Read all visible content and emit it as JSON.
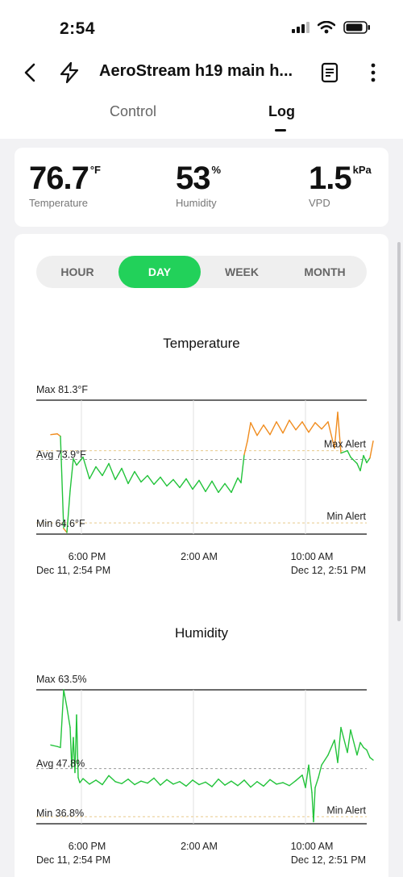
{
  "status_bar": {
    "time": "2:54",
    "icons": [
      "signal-icon",
      "wifi-icon",
      "battery-icon"
    ]
  },
  "nav": {
    "title": "AeroStream h19 main h...",
    "icons": [
      "back-chevron-icon",
      "bolt-icon",
      "document-icon",
      "more-vertical-icon"
    ]
  },
  "tabs": [
    {
      "label": "Control",
      "active": false
    },
    {
      "label": "Log",
      "active": true
    }
  ],
  "summary": [
    {
      "value": "76.7",
      "unit": "°F",
      "label": "Temperature"
    },
    {
      "value": "53",
      "unit": "%",
      "label": "Humidity"
    },
    {
      "value": "1.5",
      "unit": "kPa",
      "label": "VPD"
    }
  ],
  "range_selector": {
    "options": [
      "HOUR",
      "DAY",
      "WEEK",
      "MONTH"
    ],
    "selected": "DAY"
  },
  "colors": {
    "accent": "#22d15a",
    "green_line": "#22c33a",
    "orange_line": "#f08c1e",
    "alert_dash": "#e8c98a"
  },
  "chart_data": [
    {
      "type": "line",
      "title": "Temperature",
      "max_label": "Max 81.3°F",
      "avg_label": "Avg 73.9°F",
      "min_label": "Min 64.6°F",
      "max_alert_label": "Max Alert",
      "min_alert_label": "Min Alert",
      "ylim": [
        64.6,
        81.3
      ],
      "avg": 73.9,
      "max_alert": 75.0,
      "min_alert": 66.0,
      "x_ticks": [
        "6:00 PM",
        "2:00 AM",
        "10:00 AM"
      ],
      "x_start": "Dec 11, 2:54 PM",
      "x_end": "Dec 12, 2:51 PM",
      "series_points": [
        [
          0.0,
          77.0
        ],
        [
          0.02,
          77.1
        ],
        [
          0.03,
          76.8
        ],
        [
          0.04,
          65.3
        ],
        [
          0.05,
          64.8
        ],
        [
          0.06,
          70.0
        ],
        [
          0.07,
          74.0
        ],
        [
          0.08,
          73.2
        ],
        [
          0.1,
          74.2
        ],
        [
          0.12,
          71.5
        ],
        [
          0.14,
          73.0
        ],
        [
          0.16,
          71.9
        ],
        [
          0.18,
          73.4
        ],
        [
          0.2,
          71.4
        ],
        [
          0.22,
          72.8
        ],
        [
          0.24,
          70.9
        ],
        [
          0.26,
          72.4
        ],
        [
          0.28,
          71.1
        ],
        [
          0.3,
          71.9
        ],
        [
          0.32,
          70.8
        ],
        [
          0.34,
          71.7
        ],
        [
          0.36,
          70.6
        ],
        [
          0.38,
          71.4
        ],
        [
          0.4,
          70.4
        ],
        [
          0.42,
          71.5
        ],
        [
          0.44,
          70.2
        ],
        [
          0.46,
          71.3
        ],
        [
          0.48,
          69.9
        ],
        [
          0.5,
          71.2
        ],
        [
          0.52,
          69.8
        ],
        [
          0.54,
          70.9
        ],
        [
          0.56,
          69.8
        ],
        [
          0.58,
          71.6
        ],
        [
          0.59,
          71.0
        ],
        [
          0.6,
          74.5
        ],
        [
          0.61,
          76.2
        ],
        [
          0.62,
          78.5
        ],
        [
          0.64,
          76.9
        ],
        [
          0.66,
          78.2
        ],
        [
          0.68,
          77.0
        ],
        [
          0.7,
          78.6
        ],
        [
          0.72,
          77.2
        ],
        [
          0.74,
          78.8
        ],
        [
          0.76,
          77.6
        ],
        [
          0.78,
          78.6
        ],
        [
          0.8,
          77.3
        ],
        [
          0.82,
          78.5
        ],
        [
          0.84,
          77.7
        ],
        [
          0.86,
          78.6
        ],
        [
          0.88,
          75.3
        ],
        [
          0.89,
          79.8
        ],
        [
          0.9,
          74.7
        ],
        [
          0.92,
          75.0
        ],
        [
          0.93,
          74.2
        ],
        [
          0.95,
          73.4
        ],
        [
          0.96,
          72.5
        ],
        [
          0.97,
          74.4
        ],
        [
          0.98,
          73.5
        ],
        [
          0.99,
          74.1
        ],
        [
          1.0,
          76.2
        ]
      ]
    },
    {
      "type": "line",
      "title": "Humidity",
      "max_label": "Max 63.5%",
      "avg_label": "Avg 47.8%",
      "min_label": "Min 36.8%",
      "min_alert_label": "Min Alert",
      "ylim": [
        36.8,
        63.5
      ],
      "avg": 47.8,
      "min_alert": 38.2,
      "x_ticks": [
        "6:00 PM",
        "2:00 AM",
        "10:00 AM"
      ],
      "x_start": "Dec 11, 2:54 PM",
      "x_end": "Dec 12, 2:51 PM",
      "series_points": [
        [
          0.0,
          52.5
        ],
        [
          0.02,
          52.2
        ],
        [
          0.03,
          52.0
        ],
        [
          0.04,
          63.5
        ],
        [
          0.05,
          60.0
        ],
        [
          0.06,
          56.0
        ],
        [
          0.065,
          48.0
        ],
        [
          0.07,
          54.0
        ],
        [
          0.075,
          47.0
        ],
        [
          0.08,
          58.5
        ],
        [
          0.085,
          46.0
        ],
        [
          0.09,
          45.0
        ],
        [
          0.1,
          45.8
        ],
        [
          0.12,
          44.7
        ],
        [
          0.14,
          45.5
        ],
        [
          0.16,
          44.6
        ],
        [
          0.18,
          46.4
        ],
        [
          0.2,
          45.2
        ],
        [
          0.22,
          44.8
        ],
        [
          0.24,
          45.7
        ],
        [
          0.26,
          44.6
        ],
        [
          0.28,
          45.3
        ],
        [
          0.3,
          44.9
        ],
        [
          0.32,
          45.9
        ],
        [
          0.34,
          44.5
        ],
        [
          0.36,
          45.6
        ],
        [
          0.38,
          44.7
        ],
        [
          0.4,
          45.2
        ],
        [
          0.42,
          44.3
        ],
        [
          0.44,
          45.5
        ],
        [
          0.46,
          44.6
        ],
        [
          0.48,
          45.1
        ],
        [
          0.5,
          44.2
        ],
        [
          0.52,
          45.7
        ],
        [
          0.54,
          44.5
        ],
        [
          0.56,
          45.3
        ],
        [
          0.58,
          44.4
        ],
        [
          0.6,
          45.5
        ],
        [
          0.62,
          44.1
        ],
        [
          0.64,
          45.2
        ],
        [
          0.66,
          44.3
        ],
        [
          0.68,
          45.6
        ],
        [
          0.7,
          44.7
        ],
        [
          0.72,
          45.0
        ],
        [
          0.74,
          44.4
        ],
        [
          0.76,
          45.4
        ],
        [
          0.78,
          46.5
        ],
        [
          0.79,
          44.0
        ],
        [
          0.8,
          48.5
        ],
        [
          0.81,
          43.0
        ],
        [
          0.815,
          37.2
        ],
        [
          0.82,
          44.0
        ],
        [
          0.83,
          46.0
        ],
        [
          0.84,
          48.5
        ],
        [
          0.86,
          50.5
        ],
        [
          0.88,
          53.5
        ],
        [
          0.89,
          49.0
        ],
        [
          0.9,
          56.0
        ],
        [
          0.92,
          51.0
        ],
        [
          0.93,
          55.5
        ],
        [
          0.95,
          50.5
        ],
        [
          0.96,
          53.0
        ],
        [
          0.97,
          52.0
        ],
        [
          0.98,
          51.5
        ],
        [
          0.99,
          50.0
        ],
        [
          1.0,
          49.5
        ]
      ]
    }
  ]
}
